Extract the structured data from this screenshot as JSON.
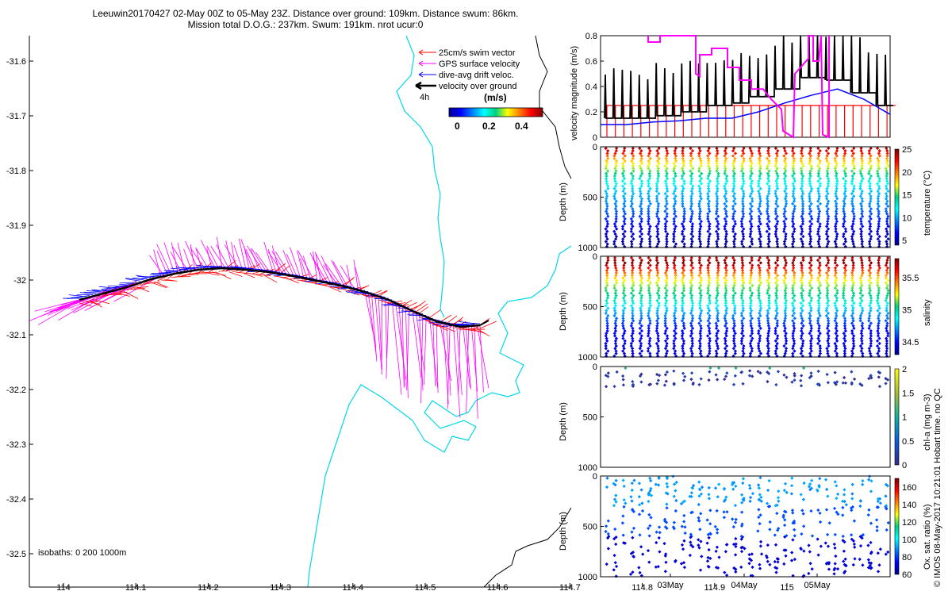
{
  "title": {
    "line1": "Leeuwin20170427 02-May 00Z to 05-May 23Z. Distance over ground: 109km. Distance swum: 86km.",
    "line2": "Mission total D.O.G.: 237km. Swum: 191km. nrot ucur:0"
  },
  "colors": {
    "coast": "#00d8e8",
    "isobath": "#000000",
    "swim": "#ff0000",
    "gps": "#ff00ff",
    "drift": "#0000ff",
    "ground": "#000000"
  },
  "map": {
    "lon_ticks": [
      "114",
      "114.1",
      "114.2",
      "114.3",
      "114.4",
      "114.5",
      "114.6",
      "114.7",
      "114.8",
      "114.9",
      "115"
    ],
    "lat_ticks": [
      "-31.6",
      "-31.7",
      "-31.8",
      "-31.9",
      "-32",
      "-32.1",
      "-32.2",
      "-32.3",
      "-32.4",
      "-32.5"
    ],
    "legend": {
      "swim": "25cm/s swim vector",
      "gps": "GPS surface velocity",
      "drift": "dive-avg drift veloc.",
      "ground": "velocity over ground",
      "time_label": "4h"
    },
    "colorbar": {
      "unit": "(m/s)",
      "ticks": [
        "0",
        "0.2",
        "0.4"
      ]
    },
    "isobaths_label": "isobaths: 0   200  1000m"
  },
  "chart_data": [
    {
      "type": "line",
      "panel": "velocity",
      "ylabel": "velocity magnitude (m/s)",
      "ylim": [
        0,
        0.8
      ],
      "yticks": [
        "0",
        "0.2",
        "0.4",
        "0.6",
        "0.8"
      ],
      "series": [
        {
          "name": "swim",
          "values": [
            0.25,
            0.25,
            0.25,
            0.25,
            0.25,
            0.25,
            0.25,
            0.25,
            0.25,
            0.25,
            0.25,
            0.25
          ]
        },
        {
          "name": "drift",
          "values": [
            0.1,
            0.1,
            0.12,
            0.13,
            0.15,
            0.15,
            0.2,
            0.27,
            0.33,
            0.38,
            0.3,
            0.18
          ]
        },
        {
          "name": "ground",
          "values": [
            0.15,
            0.15,
            0.17,
            0.2,
            0.25,
            0.27,
            0.32,
            0.38,
            0.47,
            0.45,
            0.35,
            0.25
          ]
        },
        {
          "name": "gps",
          "values": [
            0.8,
            0.8,
            0.75,
            0.6,
            0.7,
            0.6,
            0.4,
            0.3,
            0.0,
            0.8,
            0.0,
            0.8
          ]
        }
      ]
    },
    {
      "type": "scatter",
      "panel": "temperature",
      "ylabel": "Depth (m)",
      "colorbar_label": "temperature (°C)",
      "yticks": [
        "0",
        "500",
        "1000"
      ],
      "cbar_ticks": [
        "25",
        "20",
        "15",
        "10",
        "5"
      ],
      "cmin": 4,
      "cmax": 25,
      "profile": [
        [
          0,
          24
        ],
        [
          50,
          22
        ],
        [
          100,
          19
        ],
        [
          200,
          16
        ],
        [
          300,
          13
        ],
        [
          400,
          11
        ],
        [
          600,
          9
        ],
        [
          800,
          6
        ],
        [
          1000,
          4
        ]
      ]
    },
    {
      "type": "scatter",
      "panel": "salinity",
      "ylabel": "Depth (m)",
      "colorbar_label": "salinity",
      "yticks": [
        "0",
        "500",
        "1000"
      ],
      "cbar_ticks": [
        "35.5",
        "35",
        "34.5"
      ],
      "cmin": 34.3,
      "cmax": 35.8,
      "profile": [
        [
          0,
          35.7
        ],
        [
          50,
          35.8
        ],
        [
          100,
          35.6
        ],
        [
          200,
          35.3
        ],
        [
          300,
          35.1
        ],
        [
          400,
          35.0
        ],
        [
          500,
          34.8
        ],
        [
          700,
          34.5
        ],
        [
          1000,
          34.4
        ]
      ]
    },
    {
      "type": "scatter",
      "panel": "chla",
      "ylabel": "Depth (m)",
      "colorbar_label": "chl-a (mg m-3)",
      "yticks": [
        "0",
        "500",
        "1000"
      ],
      "cbar_ticks": [
        "2",
        "1.5",
        "1",
        "0.5",
        "0"
      ],
      "cmin": 0,
      "cmax": 2
    },
    {
      "type": "scatter",
      "panel": "oxygen",
      "ylabel": "Depth (m)",
      "colorbar_label": "Ox. sat. ratio (%)",
      "yticks": [
        "0",
        "500",
        "1000"
      ],
      "cbar_ticks": [
        "160",
        "140",
        "120",
        "100",
        "80",
        "60"
      ],
      "cmin": 60,
      "cmax": 170,
      "xticks": [
        "03May",
        "04May",
        "05May"
      ]
    }
  ],
  "watermark": "© IMOS 08-May-2017 10:21:01 Hobart time. no QC"
}
